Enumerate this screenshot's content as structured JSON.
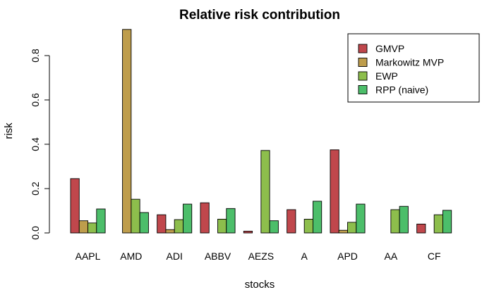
{
  "chart_data": {
    "type": "bar",
    "title": "Relative risk contribution",
    "xlabel": "stocks",
    "ylabel": "risk",
    "ylim": [
      0,
      0.92
    ],
    "yticks": [
      "0.0",
      "0.2",
      "0.4",
      "0.6",
      "0.8"
    ],
    "ytick_values": [
      0,
      0.2,
      0.4,
      0.6,
      0.8
    ],
    "grid": false,
    "legend_position": "top-right",
    "categories": [
      "AAPL",
      "AMD",
      "ADI",
      "ABBV",
      "AEZS",
      "A",
      "APD",
      "AA",
      "CF"
    ],
    "series": [
      {
        "name": "GMVP",
        "color": "#C0474C",
        "values": [
          0.245,
          0.0,
          0.082,
          0.136,
          0.008,
          0.105,
          0.375,
          0.0,
          0.04
        ]
      },
      {
        "name": "Markowitz MVP",
        "color": "#BE9D4C",
        "values": [
          0.055,
          0.918,
          0.015,
          0.0,
          0.0,
          0.0,
          0.012,
          0.0,
          0.0
        ]
      },
      {
        "name": "EWP",
        "color": "#8DBE4C",
        "values": [
          0.045,
          0.152,
          0.06,
          0.062,
          0.372,
          0.062,
          0.048,
          0.105,
          0.082
        ]
      },
      {
        "name": "RPP (naive)",
        "color": "#4CBE6A",
        "values": [
          0.108,
          0.092,
          0.13,
          0.11,
          0.055,
          0.143,
          0.13,
          0.12,
          0.102
        ]
      }
    ]
  }
}
